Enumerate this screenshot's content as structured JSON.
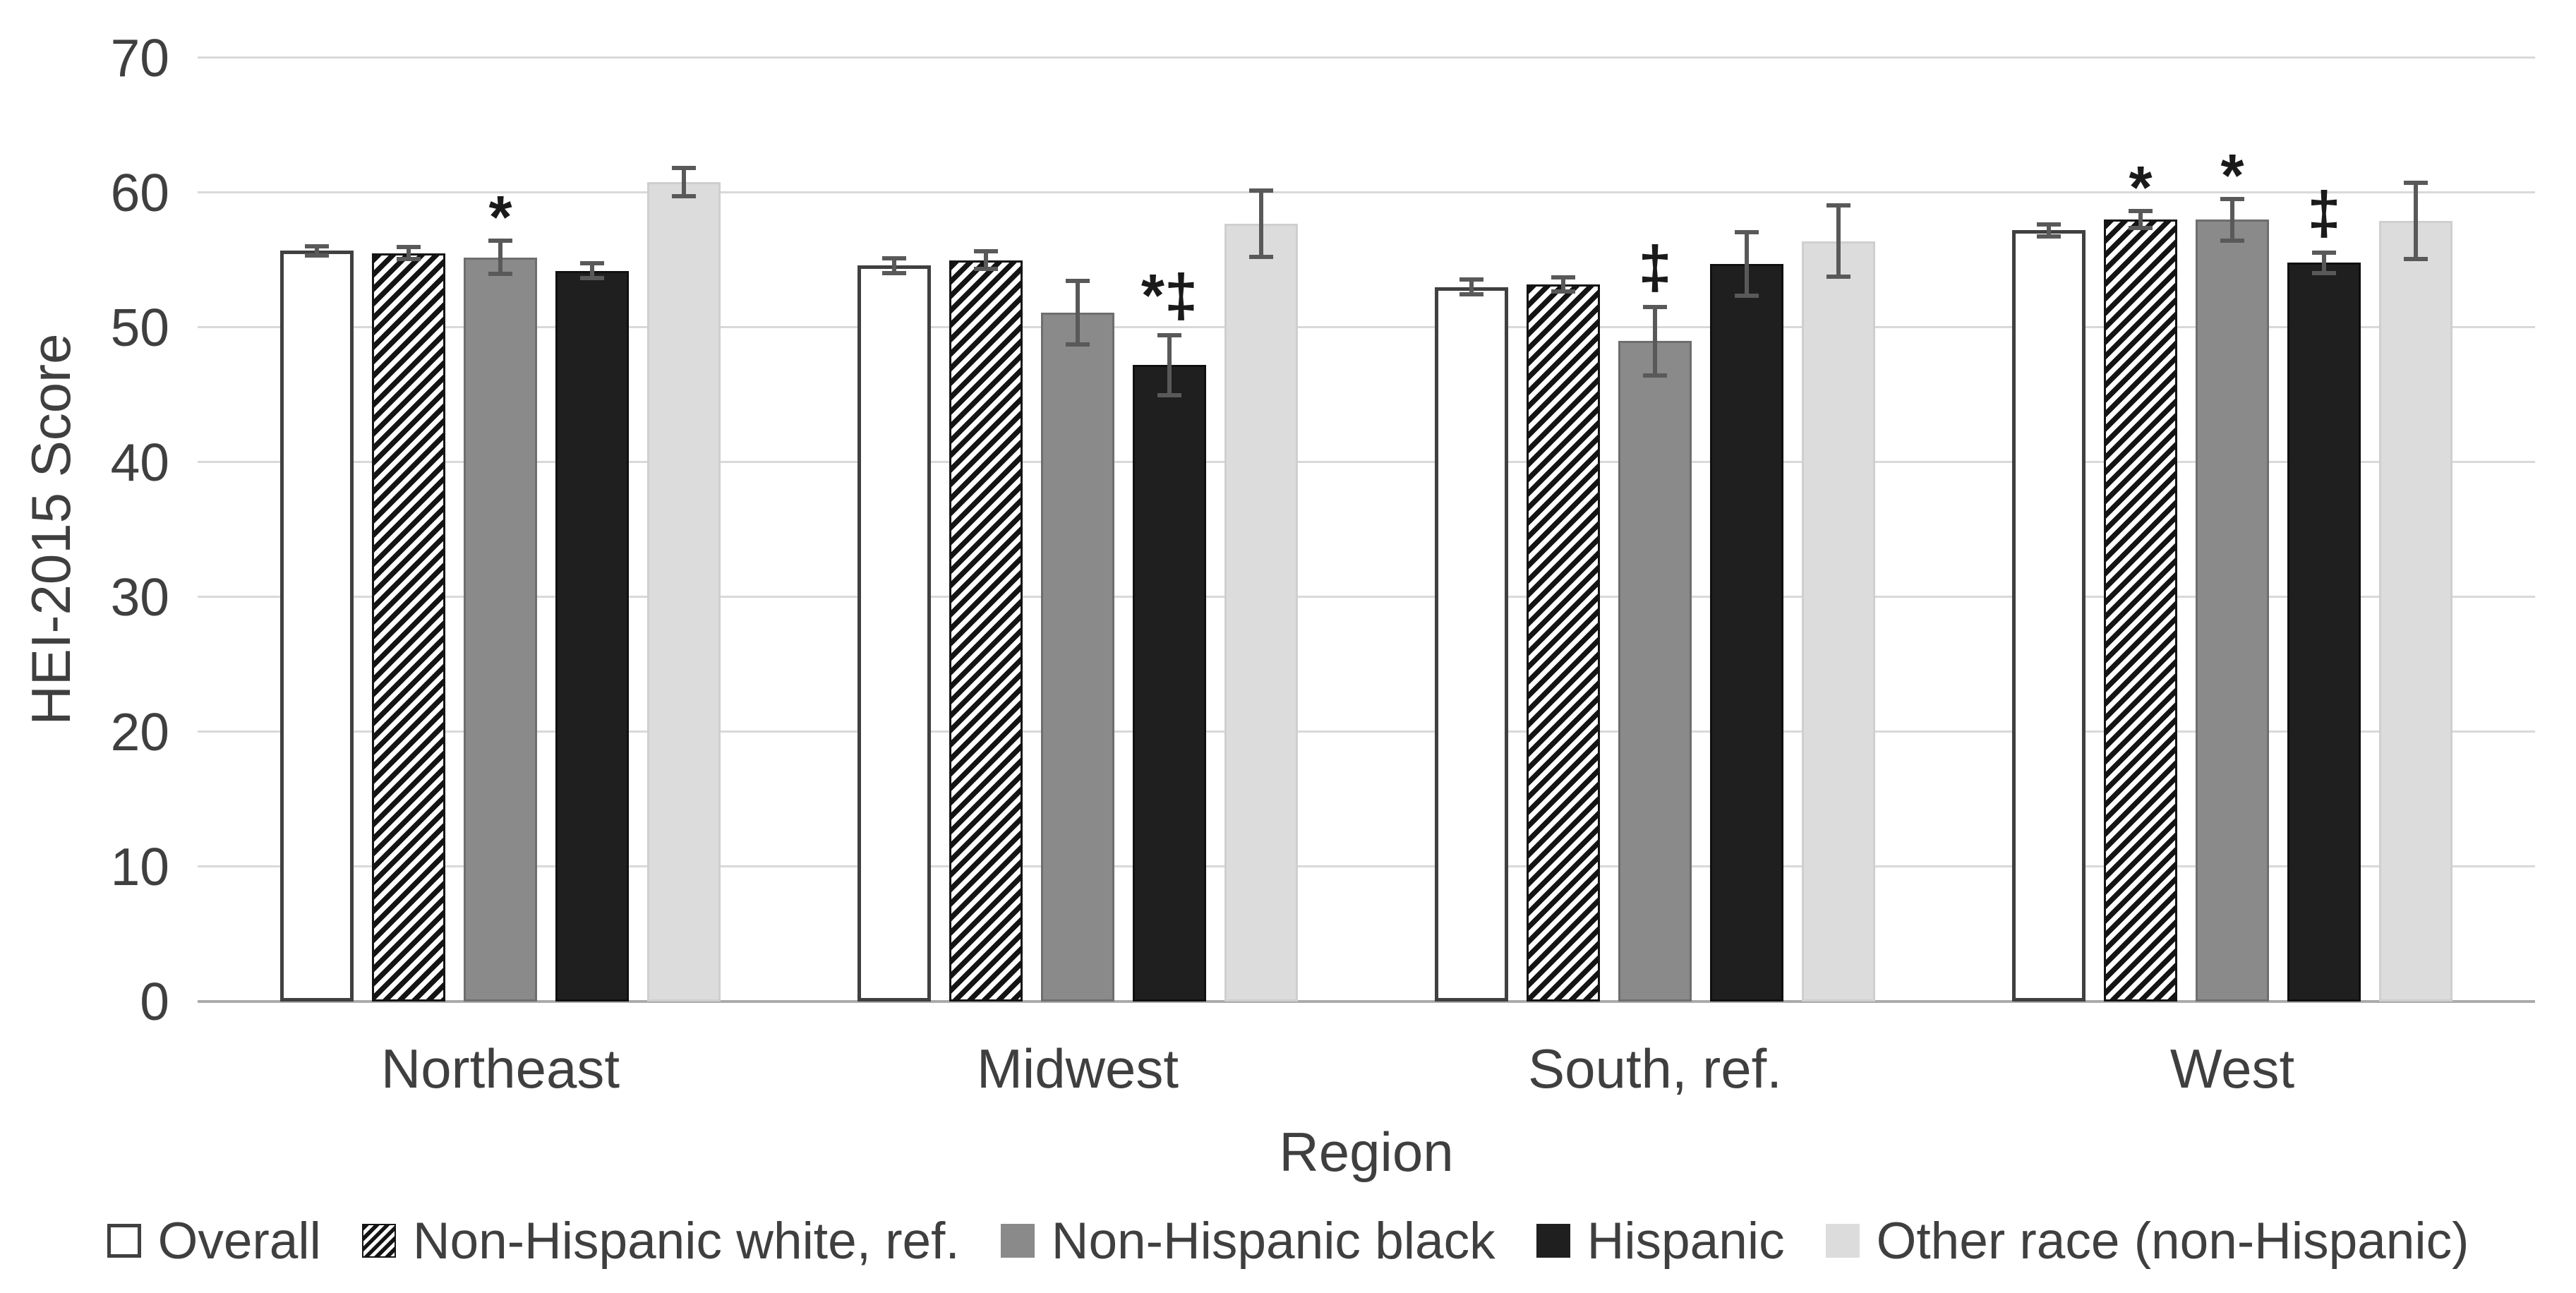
{
  "chart_data": {
    "type": "bar",
    "title": "",
    "categories": [
      "Northeast",
      "Midwest",
      "South, ref.",
      "West"
    ],
    "series": [
      {
        "name": "Overall",
        "pattern": "outline",
        "values": [
          55.7,
          54.6,
          53.0,
          57.2
        ],
        "errors": [
          0.5,
          0.7,
          0.7,
          0.6
        ],
        "annotations": [
          "",
          "",
          "",
          ""
        ]
      },
      {
        "name": "Non-Hispanic white, ref.",
        "pattern": "hatch",
        "values": [
          55.5,
          55.0,
          53.2,
          58.0
        ],
        "errors": [
          0.6,
          0.8,
          0.7,
          0.8
        ],
        "annotations": [
          "",
          "",
          "",
          "*"
        ]
      },
      {
        "name": "Non-Hispanic black",
        "pattern": "gray",
        "values": [
          55.2,
          51.1,
          49.0,
          58.0
        ],
        "errors": [
          1.4,
          2.5,
          2.7,
          1.7
        ],
        "annotations": [
          "*",
          "",
          "‡",
          "*"
        ]
      },
      {
        "name": "Hispanic",
        "pattern": "black",
        "values": [
          54.2,
          47.2,
          54.7,
          54.8
        ],
        "errors": [
          0.7,
          2.4,
          2.5,
          0.9
        ],
        "annotations": [
          "",
          "*‡",
          "",
          "‡"
        ]
      },
      {
        "name": "Other race (non-Hispanic)",
        "pattern": "lightgray",
        "values": [
          60.8,
          57.7,
          56.4,
          57.9
        ],
        "errors": [
          1.2,
          2.6,
          2.8,
          3.0
        ],
        "annotations": [
          "",
          "",
          "",
          ""
        ]
      }
    ],
    "xlabel": "Region",
    "ylabel": "HEI-2015 Score",
    "ylim": [
      0,
      70
    ],
    "yticks": [
      0,
      10,
      20,
      30,
      40,
      50,
      60,
      70
    ],
    "grid": true,
    "error_bars": true,
    "legend_position": "bottom"
  },
  "colors": {
    "text": "#3f3f3f",
    "gridline": "#d9d9d9",
    "axis_line": "#ababab",
    "error_bar": "#595959",
    "bar_outline": "#404040",
    "bar_gray": "#8a8a8a",
    "bar_black": "#1f1f1f",
    "bar_lightgray": "#dcdcdc",
    "hatch_foreground": "#141414"
  }
}
